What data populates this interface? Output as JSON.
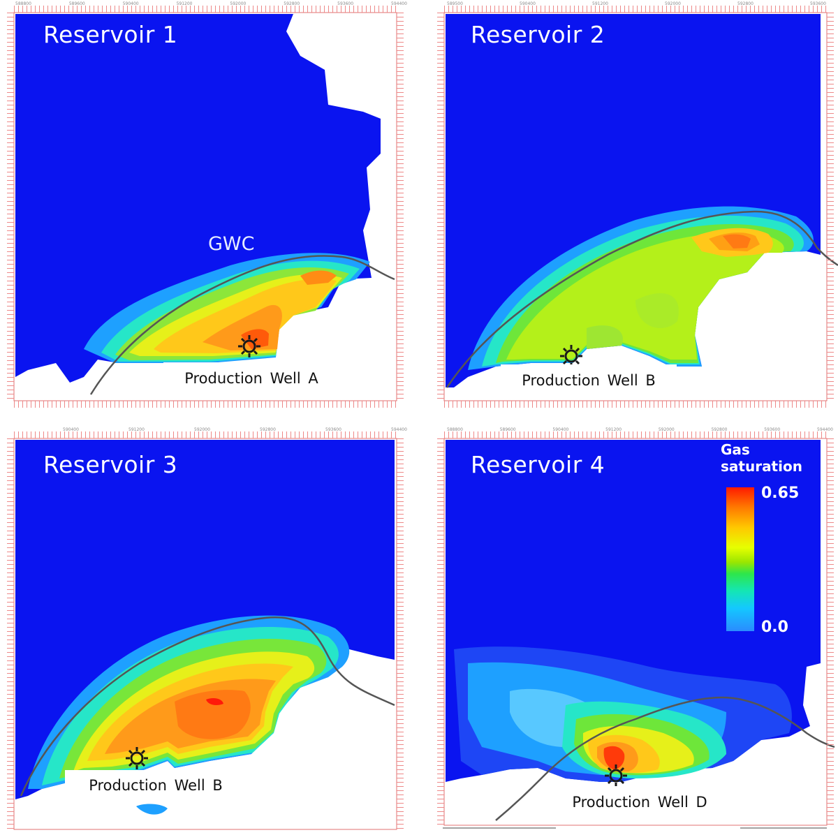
{
  "panels": [
    {
      "title": "Reservoir 1",
      "well_label": "Production Well A",
      "annotation": "GWC"
    },
    {
      "title": "Reservoir 2",
      "well_label": "Production Well B"
    },
    {
      "title": "Reservoir 3",
      "well_label": "Production Well B"
    },
    {
      "title": "Reservoir 4",
      "well_label": "Production Well D"
    }
  ],
  "legend": {
    "title_line1": "Gas",
    "title_line2": "saturation",
    "max_label": "0.65",
    "min_label": "0.0"
  },
  "axis_labels": {
    "top_1": [
      "588800",
      "589600",
      "590400",
      "591200",
      "592000",
      "592800",
      "593600",
      "594400"
    ],
    "top_2": [
      "589500",
      "590400",
      "591200",
      "592000",
      "592800",
      "593600"
    ],
    "top_3": [
      "590400",
      "591200",
      "592000",
      "592800",
      "593600",
      "594400"
    ],
    "top_4": [
      "588800",
      "589600",
      "590400",
      "591200",
      "592000",
      "592800",
      "593600",
      "594400"
    ]
  },
  "colors": {
    "background_blue": "#0a14f0",
    "gwc_line": "#555555",
    "panel_border": "#e07070",
    "well_marker": "#1a1a1a"
  },
  "icons": {
    "well_marker": "sun-well-icon"
  }
}
